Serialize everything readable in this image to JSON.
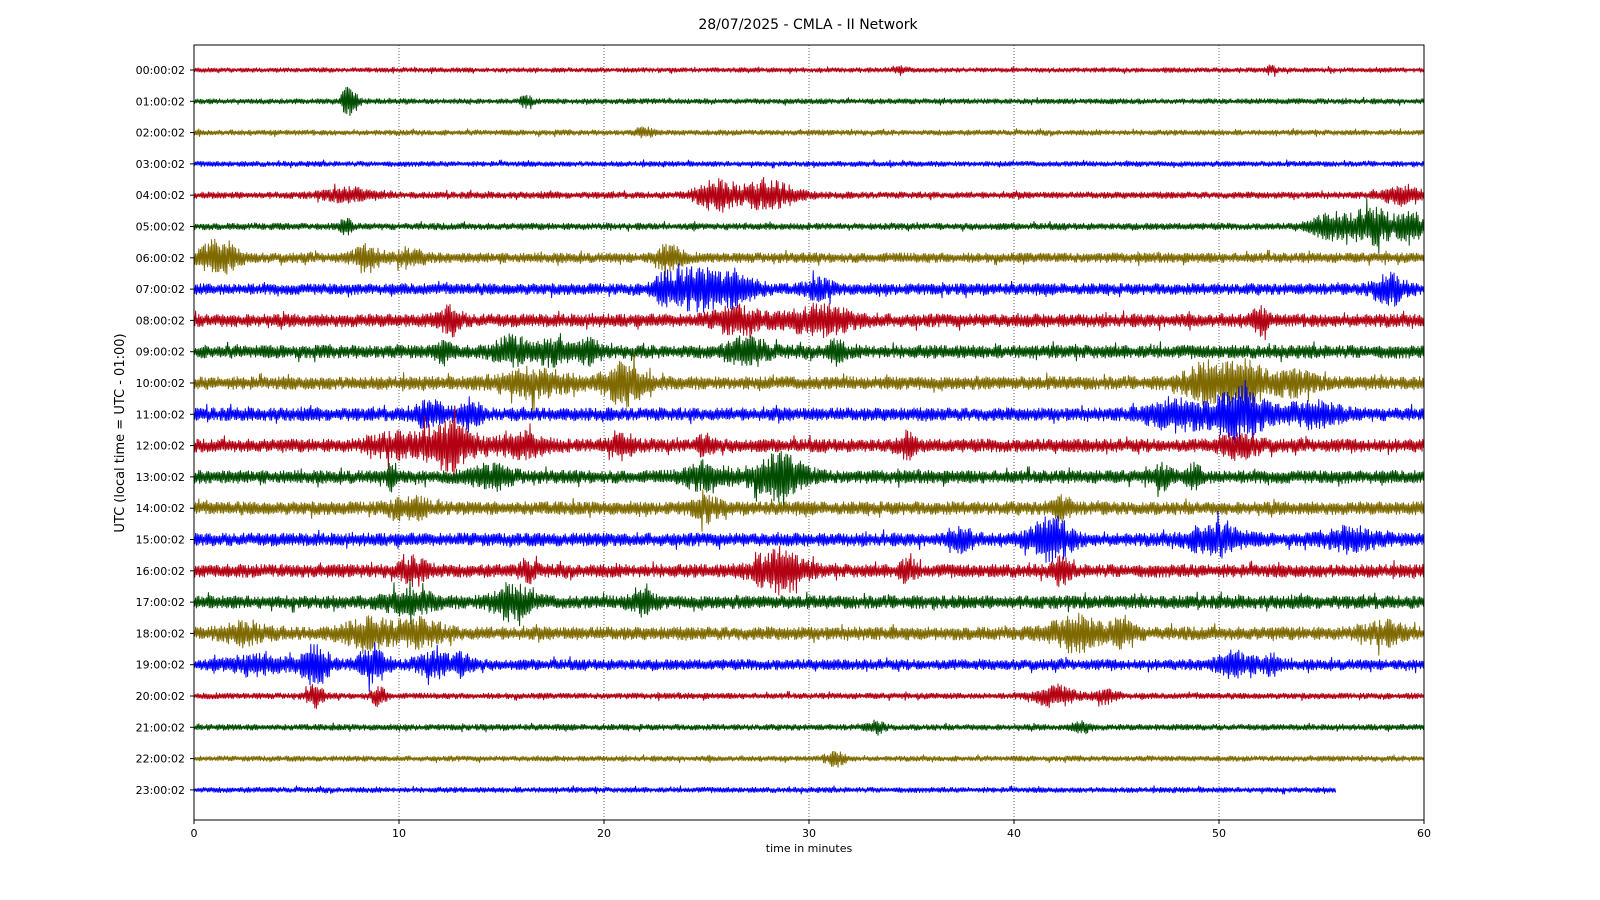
{
  "chart_data": {
    "type": "line",
    "title": "28/07/2025 - CMLA - II Network",
    "xlabel": "time in minutes",
    "ylabel": "UTC (local time = UTC - 01:00)",
    "xlim": [
      0,
      60
    ],
    "x_ticks": [
      "0",
      "10",
      "20",
      "30",
      "40",
      "50",
      "60"
    ],
    "grid": "vertical-dotted",
    "palette": [
      "#b30012",
      "#004d00",
      "#7f6a00",
      "#0000ff"
    ],
    "traces": [
      {
        "label": "00:00:02",
        "color": "#b30012",
        "noise": 0.35,
        "end": 60,
        "events": [
          {
            "t": 34.5,
            "a": 0.6,
            "d": 0.3
          },
          {
            "t": 52.5,
            "a": 0.5,
            "d": 0.3
          }
        ]
      },
      {
        "label": "01:00:02",
        "color": "#004d00",
        "noise": 0.4,
        "end": 60,
        "events": [
          {
            "t": 7.6,
            "a": 2.2,
            "d": 0.4
          },
          {
            "t": 16.2,
            "a": 0.7,
            "d": 0.3
          }
        ]
      },
      {
        "label": "02:00:02",
        "color": "#7f6a00",
        "noise": 0.4,
        "end": 60,
        "events": [
          {
            "t": 22,
            "a": 0.6,
            "d": 0.4
          }
        ]
      },
      {
        "label": "03:00:02",
        "color": "#0000ff",
        "noise": 0.4,
        "end": 60,
        "events": []
      },
      {
        "label": "04:00:02",
        "color": "#b30012",
        "noise": 0.5,
        "end": 60,
        "events": [
          {
            "t": 7.5,
            "a": 0.9,
            "d": 1.2
          },
          {
            "t": 25.5,
            "a": 2.2,
            "d": 1.0
          },
          {
            "t": 28.0,
            "a": 2.0,
            "d": 1.4
          },
          {
            "t": 59.0,
            "a": 1.3,
            "d": 1.0
          }
        ]
      },
      {
        "label": "05:00:02",
        "color": "#004d00",
        "noise": 0.5,
        "end": 60,
        "events": [
          {
            "t": 7.4,
            "a": 1.0,
            "d": 0.3
          },
          {
            "t": 55.5,
            "a": 1.8,
            "d": 1.0
          },
          {
            "t": 57.5,
            "a": 2.8,
            "d": 1.0
          },
          {
            "t": 59.3,
            "a": 2.8,
            "d": 0.6
          }
        ]
      },
      {
        "label": "06:00:02",
        "color": "#7f6a00",
        "noise": 0.75,
        "end": 60,
        "events": [
          {
            "t": 1.2,
            "a": 2.4,
            "d": 0.9
          },
          {
            "t": 8.5,
            "a": 1.6,
            "d": 0.7
          },
          {
            "t": 10.5,
            "a": 1.1,
            "d": 0.7
          },
          {
            "t": 23.2,
            "a": 2.0,
            "d": 0.6
          }
        ]
      },
      {
        "label": "07:00:02",
        "color": "#0000ff",
        "noise": 0.85,
        "end": 60,
        "events": [
          {
            "t": 23.0,
            "a": 1.5,
            "d": 0.7
          },
          {
            "t": 24.5,
            "a": 2.8,
            "d": 1.2
          },
          {
            "t": 26.5,
            "a": 2.2,
            "d": 1.0
          },
          {
            "t": 30.5,
            "a": 1.2,
            "d": 0.7
          },
          {
            "t": 58.3,
            "a": 2.0,
            "d": 0.8
          }
        ]
      },
      {
        "label": "08:00:02",
        "color": "#b30012",
        "noise": 1.0,
        "end": 60,
        "events": [
          {
            "t": 12.5,
            "a": 1.8,
            "d": 0.5
          },
          {
            "t": 26.5,
            "a": 1.6,
            "d": 1.2
          },
          {
            "t": 30.5,
            "a": 1.7,
            "d": 1.6
          },
          {
            "t": 52.0,
            "a": 1.5,
            "d": 0.4
          }
        ]
      },
      {
        "label": "09:00:02",
        "color": "#004d00",
        "noise": 1.0,
        "end": 60,
        "events": [
          {
            "t": 12.2,
            "a": 1.3,
            "d": 0.4
          },
          {
            "t": 15.5,
            "a": 1.9,
            "d": 0.8
          },
          {
            "t": 17.5,
            "a": 1.6,
            "d": 0.8
          },
          {
            "t": 19.3,
            "a": 1.4,
            "d": 0.5
          },
          {
            "t": 27.0,
            "a": 1.7,
            "d": 1.0
          },
          {
            "t": 31.3,
            "a": 1.4,
            "d": 0.4
          }
        ]
      },
      {
        "label": "10:00:02",
        "color": "#7f6a00",
        "noise": 1.0,
        "end": 60,
        "events": [
          {
            "t": 16.5,
            "a": 1.7,
            "d": 1.8
          },
          {
            "t": 21.0,
            "a": 2.8,
            "d": 1.0
          },
          {
            "t": 49.5,
            "a": 2.6,
            "d": 1.2
          },
          {
            "t": 51.3,
            "a": 3.4,
            "d": 0.8
          },
          {
            "t": 53.5,
            "a": 1.4,
            "d": 1.2
          }
        ]
      },
      {
        "label": "11:00:02",
        "color": "#0000ff",
        "noise": 1.0,
        "end": 60,
        "events": [
          {
            "t": 11.5,
            "a": 1.6,
            "d": 0.8
          },
          {
            "t": 13.5,
            "a": 1.9,
            "d": 0.5
          },
          {
            "t": 48.0,
            "a": 2.0,
            "d": 1.5
          },
          {
            "t": 51.0,
            "a": 3.6,
            "d": 1.2
          },
          {
            "t": 54.5,
            "a": 1.4,
            "d": 1.4
          }
        ]
      },
      {
        "label": "12:00:02",
        "color": "#b30012",
        "noise": 1.0,
        "end": 60,
        "events": [
          {
            "t": 9.5,
            "a": 1.4,
            "d": 1.0
          },
          {
            "t": 12.3,
            "a": 3.3,
            "d": 1.4
          },
          {
            "t": 16.0,
            "a": 1.4,
            "d": 1.2
          },
          {
            "t": 20.8,
            "a": 1.5,
            "d": 0.7
          },
          {
            "t": 25.0,
            "a": 1.4,
            "d": 0.4
          },
          {
            "t": 34.8,
            "a": 1.5,
            "d": 0.4
          },
          {
            "t": 51.0,
            "a": 1.4,
            "d": 1.0
          }
        ]
      },
      {
        "label": "13:00:02",
        "color": "#004d00",
        "noise": 1.0,
        "end": 60,
        "events": [
          {
            "t": 9.7,
            "a": 1.6,
            "d": 0.3
          },
          {
            "t": 14.5,
            "a": 1.4,
            "d": 1.0
          },
          {
            "t": 25.0,
            "a": 1.8,
            "d": 1.0
          },
          {
            "t": 28.5,
            "a": 3.0,
            "d": 1.3
          },
          {
            "t": 47.2,
            "a": 1.3,
            "d": 0.5
          },
          {
            "t": 48.8,
            "a": 1.3,
            "d": 0.4
          }
        ]
      },
      {
        "label": "14:00:02",
        "color": "#7f6a00",
        "noise": 1.0,
        "end": 60,
        "events": [
          {
            "t": 10.5,
            "a": 1.2,
            "d": 1.0
          },
          {
            "t": 25.0,
            "a": 1.5,
            "d": 0.6
          },
          {
            "t": 42.3,
            "a": 1.3,
            "d": 0.5
          }
        ]
      },
      {
        "label": "15:00:02",
        "color": "#0000ff",
        "noise": 1.0,
        "end": 60,
        "events": [
          {
            "t": 37.5,
            "a": 1.6,
            "d": 0.5
          },
          {
            "t": 41.8,
            "a": 3.0,
            "d": 1.0
          },
          {
            "t": 49.8,
            "a": 2.0,
            "d": 1.3
          },
          {
            "t": 56.5,
            "a": 1.4,
            "d": 1.2
          }
        ]
      },
      {
        "label": "16:00:02",
        "color": "#b30012",
        "noise": 1.0,
        "end": 60,
        "events": [
          {
            "t": 10.8,
            "a": 1.5,
            "d": 0.8
          },
          {
            "t": 16.3,
            "a": 1.3,
            "d": 0.4
          },
          {
            "t": 28.5,
            "a": 3.0,
            "d": 1.2
          },
          {
            "t": 34.8,
            "a": 1.5,
            "d": 0.4
          },
          {
            "t": 42.3,
            "a": 1.6,
            "d": 0.4
          }
        ]
      },
      {
        "label": "17:00:02",
        "color": "#004d00",
        "noise": 1.0,
        "end": 60,
        "events": [
          {
            "t": 10.5,
            "a": 1.4,
            "d": 1.2
          },
          {
            "t": 15.5,
            "a": 2.3,
            "d": 1.0
          },
          {
            "t": 21.8,
            "a": 1.5,
            "d": 0.6
          }
        ]
      },
      {
        "label": "18:00:02",
        "color": "#7f6a00",
        "noise": 1.0,
        "end": 60,
        "events": [
          {
            "t": 2.5,
            "a": 1.3,
            "d": 1.0
          },
          {
            "t": 8.5,
            "a": 1.7,
            "d": 1.3
          },
          {
            "t": 11.0,
            "a": 1.6,
            "d": 1.2
          },
          {
            "t": 43.0,
            "a": 2.2,
            "d": 1.2
          },
          {
            "t": 45.3,
            "a": 1.9,
            "d": 0.6
          },
          {
            "t": 58.0,
            "a": 1.3,
            "d": 1.0
          }
        ]
      },
      {
        "label": "19:00:02",
        "color": "#0000ff",
        "noise": 0.8,
        "end": 60,
        "events": [
          {
            "t": 3.0,
            "a": 1.1,
            "d": 1.5
          },
          {
            "t": 5.9,
            "a": 2.8,
            "d": 0.7
          },
          {
            "t": 8.7,
            "a": 2.7,
            "d": 0.7
          },
          {
            "t": 11.8,
            "a": 1.6,
            "d": 0.9
          },
          {
            "t": 13.2,
            "a": 1.3,
            "d": 0.5
          },
          {
            "t": 50.8,
            "a": 1.6,
            "d": 0.9
          },
          {
            "t": 52.5,
            "a": 1.3,
            "d": 0.5
          }
        ]
      },
      {
        "label": "20:00:02",
        "color": "#b30012",
        "noise": 0.45,
        "end": 60,
        "events": [
          {
            "t": 5.9,
            "a": 1.6,
            "d": 0.4
          },
          {
            "t": 9.0,
            "a": 1.3,
            "d": 0.4
          },
          {
            "t": 42.0,
            "a": 1.5,
            "d": 1.0
          },
          {
            "t": 44.5,
            "a": 0.9,
            "d": 0.6
          }
        ]
      },
      {
        "label": "21:00:02",
        "color": "#004d00",
        "noise": 0.45,
        "end": 60,
        "events": [
          {
            "t": 33.3,
            "a": 0.8,
            "d": 0.4
          },
          {
            "t": 43.3,
            "a": 0.8,
            "d": 0.4
          }
        ]
      },
      {
        "label": "22:00:02",
        "color": "#7f6a00",
        "noise": 0.4,
        "end": 60,
        "events": [
          {
            "t": 31.3,
            "a": 1.0,
            "d": 0.5
          }
        ]
      },
      {
        "label": "23:00:02",
        "color": "#0000ff",
        "noise": 0.4,
        "end": 55.7,
        "events": []
      }
    ]
  }
}
